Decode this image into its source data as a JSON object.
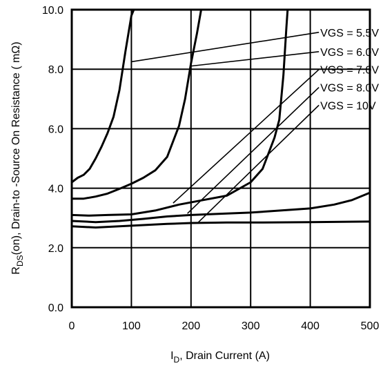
{
  "chart_data": {
    "type": "line",
    "xlabel_main": "I",
    "xlabel_sub": "D",
    "xlabel_rest": ", Drain Current (A)",
    "ylabel_main": "R",
    "ylabel_sub": "DS",
    "ylabel_rest": "(on),  Drain-to -Source On Resistance ( mΩ)",
    "xlim": [
      0,
      500
    ],
    "ylim": [
      0,
      10
    ],
    "grid": true,
    "x_ticks": [
      {
        "value": 0,
        "label": "0"
      },
      {
        "value": 100,
        "label": "100"
      },
      {
        "value": 200,
        "label": "200"
      },
      {
        "value": 300,
        "label": "300"
      },
      {
        "value": 400,
        "label": "400"
      },
      {
        "value": 500,
        "label": "500"
      }
    ],
    "y_ticks": [
      {
        "value": 0,
        "label": "0.0"
      },
      {
        "value": 2,
        "label": "2.0"
      },
      {
        "value": 4,
        "label": "4.0"
      },
      {
        "value": 6,
        "label": "6.0"
      },
      {
        "value": 8,
        "label": "8.0"
      },
      {
        "value": 10,
        "label": "10.0"
      }
    ],
    "series": [
      {
        "name": "VGS = 5.5V",
        "points": [
          [
            0,
            4.2
          ],
          [
            10,
            4.35
          ],
          [
            20,
            4.45
          ],
          [
            30,
            4.65
          ],
          [
            40,
            5.0
          ],
          [
            50,
            5.4
          ],
          [
            60,
            5.85
          ],
          [
            70,
            6.4
          ],
          [
            80,
            7.3
          ],
          [
            90,
            8.6
          ],
          [
            100,
            9.8
          ],
          [
            104,
            10.0
          ]
        ],
        "label_anchor": [
          100,
          8.25
        ]
      },
      {
        "name": "VGS = 6.0V",
        "points": [
          [
            0,
            3.65
          ],
          [
            20,
            3.65
          ],
          [
            40,
            3.72
          ],
          [
            60,
            3.82
          ],
          [
            80,
            3.98
          ],
          [
            100,
            4.15
          ],
          [
            120,
            4.35
          ],
          [
            140,
            4.6
          ],
          [
            160,
            5.05
          ],
          [
            180,
            6.1
          ],
          [
            190,
            7.0
          ],
          [
            200,
            8.2
          ],
          [
            210,
            9.2
          ],
          [
            217,
            10.0
          ]
        ],
        "label_anchor": [
          198,
          8.1
        ]
      },
      {
        "name": "VGS = 7.0V",
        "points": [
          [
            0,
            3.1
          ],
          [
            30,
            3.08
          ],
          [
            60,
            3.1
          ],
          [
            100,
            3.12
          ],
          [
            140,
            3.25
          ],
          [
            180,
            3.45
          ],
          [
            220,
            3.6
          ],
          [
            260,
            3.75
          ],
          [
            300,
            4.2
          ],
          [
            320,
            4.65
          ],
          [
            340,
            5.7
          ],
          [
            348,
            6.3
          ],
          [
            355,
            7.8
          ],
          [
            360,
            9.4
          ],
          [
            362,
            10.0
          ]
        ],
        "label_anchor": [
          170,
          3.5
        ]
      },
      {
        "name": "VGS = 8.0V",
        "points": [
          [
            0,
            2.9
          ],
          [
            40,
            2.86
          ],
          [
            80,
            2.9
          ],
          [
            120,
            2.97
          ],
          [
            160,
            3.05
          ],
          [
            200,
            3.1
          ],
          [
            260,
            3.15
          ],
          [
            300,
            3.18
          ],
          [
            350,
            3.25
          ],
          [
            400,
            3.32
          ],
          [
            440,
            3.45
          ],
          [
            470,
            3.6
          ],
          [
            500,
            3.85
          ]
        ],
        "label_anchor": [
          194,
          3.15
        ]
      },
      {
        "name": "VGS = 10V",
        "points": [
          [
            0,
            2.72
          ],
          [
            40,
            2.68
          ],
          [
            80,
            2.72
          ],
          [
            120,
            2.76
          ],
          [
            160,
            2.8
          ],
          [
            200,
            2.83
          ],
          [
            260,
            2.85
          ],
          [
            320,
            2.85
          ],
          [
            400,
            2.86
          ],
          [
            500,
            2.88
          ]
        ],
        "label_anchor": [
          212,
          2.85
        ]
      }
    ],
    "legend": {
      "placement": "top-right",
      "entries": [
        {
          "label": "VGS = 5.5V",
          "value": [
            352,
            9.1
          ]
        },
        {
          "label": "VGS = 6.0V",
          "value": [
            352,
            8.45
          ]
        },
        {
          "label": "VGS = 7.0V",
          "value": [
            352,
            7.85
          ]
        },
        {
          "label": "VGS = 8.0V",
          "value": [
            352,
            7.25
          ]
        },
        {
          "label": "VGS = 10V",
          "value": [
            352,
            6.65
          ]
        }
      ]
    }
  }
}
